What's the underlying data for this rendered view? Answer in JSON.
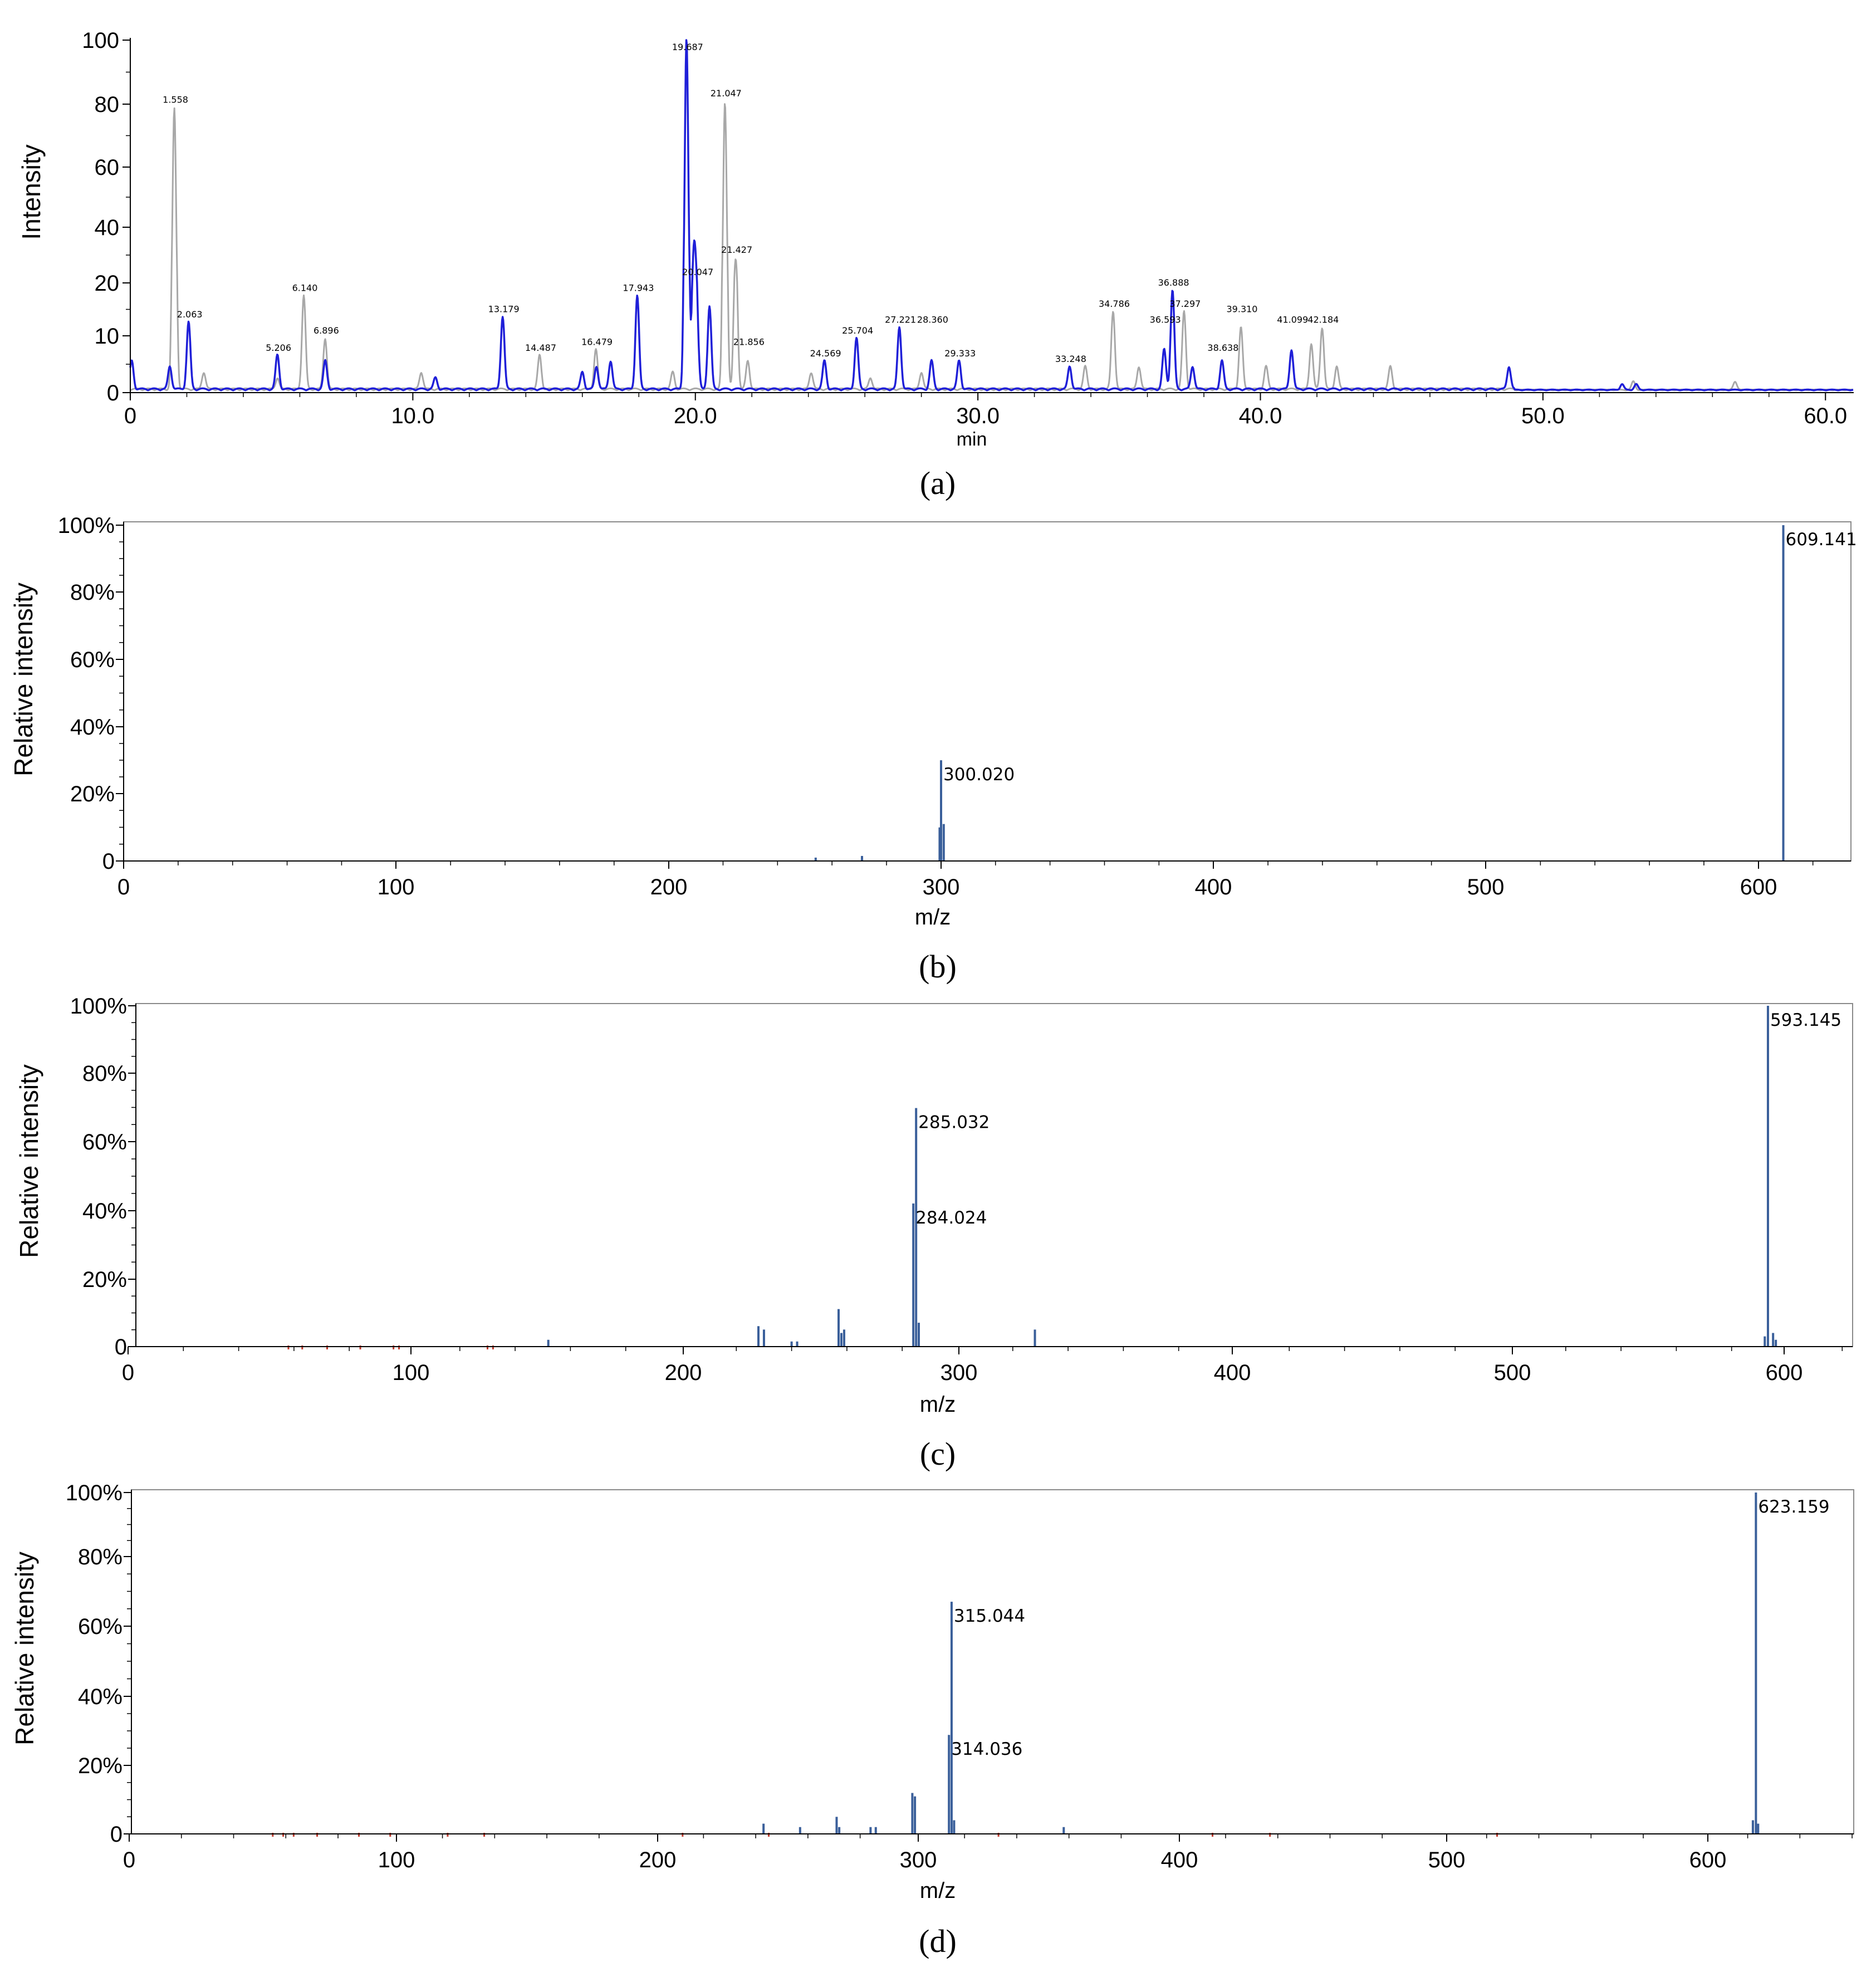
{
  "figure": {
    "panels": [
      "(a)",
      "(b)",
      "(c)",
      "(d)"
    ]
  },
  "colors": {
    "blue_trace": "#1f1fd8",
    "gray_trace": "#a8a8a8",
    "spectrum_bar": "#3a5f9a",
    "noise_red": "#c0392b",
    "axis": "#000000"
  },
  "chart_data": [
    {
      "type": "line",
      "panel": "a",
      "xlabel": "min",
      "ylabel": "Intensity",
      "xlim": [
        0,
        61
      ],
      "y_ticks": [
        "0",
        "10",
        "20",
        "40",
        "60",
        "80",
        "100"
      ],
      "x_ticks": [
        "0",
        "10.0",
        "20.0",
        "30.0",
        "40.0",
        "50.0",
        "60.0"
      ],
      "grid": false,
      "series": [
        {
          "color": "gray",
          "peaks": [
            [
              1.558,
              78
            ],
            [
              2.6,
              3
            ],
            [
              5.206,
              2
            ],
            [
              6.14,
              17
            ],
            [
              6.896,
              9
            ],
            [
              10.3,
              3
            ],
            [
              14.487,
              6
            ],
            [
              16.479,
              7
            ],
            [
              19.2,
              3
            ],
            [
              21.047,
              80
            ],
            [
              21.427,
              28
            ],
            [
              21.856,
              5
            ],
            [
              24.1,
              3
            ],
            [
              26.2,
              2
            ],
            [
              28.0,
              3
            ],
            [
              33.8,
              4
            ],
            [
              34.786,
              14
            ],
            [
              35.7,
              4
            ],
            [
              37.297,
              14
            ],
            [
              39.31,
              11
            ],
            [
              40.2,
              4
            ],
            [
              41.8,
              8
            ],
            [
              42.184,
              11
            ],
            [
              42.7,
              4
            ],
            [
              44.6,
              4
            ],
            [
              53.2,
              1.5
            ],
            [
              56.8,
              1.5
            ]
          ]
        },
        {
          "color": "blue",
          "peaks": [
            [
              0.05,
              5
            ],
            [
              1.4,
              4
            ],
            [
              2.063,
              12
            ],
            [
              5.206,
              6
            ],
            [
              6.9,
              5
            ],
            [
              10.8,
              2
            ],
            [
              13.179,
              13
            ],
            [
              16.0,
              3
            ],
            [
              16.5,
              4
            ],
            [
              17.0,
              5
            ],
            [
              17.943,
              17
            ],
            [
              19.687,
              100
            ],
            [
              19.95,
              30
            ],
            [
              20.047,
              13
            ],
            [
              20.5,
              15
            ],
            [
              24.569,
              5
            ],
            [
              25.704,
              9
            ],
            [
              27.221,
              11
            ],
            [
              28.36,
              5
            ],
            [
              29.333,
              5
            ],
            [
              33.248,
              4
            ],
            [
              36.593,
              7
            ],
            [
              36.888,
              18
            ],
            [
              37.6,
              4
            ],
            [
              38.638,
              5
            ],
            [
              41.099,
              7
            ],
            [
              48.8,
              4
            ],
            [
              52.8,
              1
            ],
            [
              53.3,
              1
            ]
          ]
        }
      ],
      "annotations": [
        {
          "x": 1.558,
          "y": 78,
          "text": "1.558"
        },
        {
          "x": 2.063,
          "y": 12,
          "text": "2.063"
        },
        {
          "x": 5.206,
          "y": 6,
          "text": "5.206"
        },
        {
          "x": 6.14,
          "y": 17,
          "text": "6.140"
        },
        {
          "x": 6.896,
          "y": 9,
          "text": "6.896"
        },
        {
          "x": 13.179,
          "y": 13,
          "text": "13.179"
        },
        {
          "x": 14.487,
          "y": 6,
          "text": "14.487"
        },
        {
          "x": 16.479,
          "y": 7,
          "text": "16.479"
        },
        {
          "x": 17.943,
          "y": 17,
          "text": "17.943"
        },
        {
          "x": 19.687,
          "y": 100,
          "text": "19.687"
        },
        {
          "x": 20.047,
          "y": 20,
          "text": "20.047"
        },
        {
          "x": 21.047,
          "y": 80,
          "text": "21.047"
        },
        {
          "x": 21.427,
          "y": 28,
          "text": "21.427"
        },
        {
          "x": 21.856,
          "y": 7,
          "text": "21.856"
        },
        {
          "x": 24.569,
          "y": 5,
          "text": "24.569"
        },
        {
          "x": 25.704,
          "y": 9,
          "text": "25.704"
        },
        {
          "x": 27.221,
          "y": 11,
          "text": "27.221"
        },
        {
          "x": 28.36,
          "y": 11,
          "text": "28.360"
        },
        {
          "x": 29.333,
          "y": 5,
          "text": "29.333"
        },
        {
          "x": 33.248,
          "y": 4,
          "text": "33.248"
        },
        {
          "x": 34.786,
          "y": 14,
          "text": "34.786"
        },
        {
          "x": 36.593,
          "y": 11,
          "text": "36.593"
        },
        {
          "x": 36.888,
          "y": 18,
          "text": "36.888"
        },
        {
          "x": 37.297,
          "y": 14,
          "text": "37.297"
        },
        {
          "x": 38.638,
          "y": 6,
          "text": "38.638"
        },
        {
          "x": 39.31,
          "y": 13,
          "text": "39.310"
        },
        {
          "x": 41.099,
          "y": 11,
          "text": "41.099"
        },
        {
          "x": 42.184,
          "y": 11,
          "text": "42.184"
        }
      ]
    },
    {
      "type": "bar",
      "panel": "b",
      "xlabel": "m/z",
      "ylabel": "Relative intensity",
      "xlim": [
        0,
        635
      ],
      "ylim": [
        0,
        100
      ],
      "y_ticks": [
        "0",
        "20%",
        "40%",
        "60%",
        "80%",
        "100%"
      ],
      "x_ticks": [
        "0",
        "100",
        "200",
        "300",
        "400",
        "500",
        "600"
      ],
      "grid": false,
      "peaks": [
        [
          254,
          1
        ],
        [
          271,
          1.5
        ],
        [
          299.5,
          10
        ],
        [
          300.02,
          30
        ],
        [
          301,
          11
        ],
        [
          609.141,
          100
        ]
      ],
      "labels": [
        {
          "x": 300.02,
          "y": 30,
          "text": "300.020"
        },
        {
          "x": 609.141,
          "y": 100,
          "text": "609.141"
        }
      ]
    },
    {
      "type": "bar",
      "panel": "c",
      "xlabel": "m/z",
      "ylabel": "Relative intensity",
      "xlim": [
        0,
        625
      ],
      "ylim": [
        0,
        100
      ],
      "y_ticks": [
        "0",
        "20%",
        "40%",
        "60%",
        "80%",
        "100%"
      ],
      "x_ticks": [
        "0",
        "100",
        "200",
        "300",
        "400",
        "500",
        "600"
      ],
      "grid": false,
      "peaks": [
        [
          152,
          2
        ],
        [
          228,
          6
        ],
        [
          230,
          5
        ],
        [
          240,
          1.5
        ],
        [
          242,
          1.5
        ],
        [
          257,
          11
        ],
        [
          258,
          4
        ],
        [
          259,
          5
        ],
        [
          284.024,
          42
        ],
        [
          285.032,
          70
        ],
        [
          286,
          7
        ],
        [
          328,
          5
        ],
        [
          592,
          3
        ],
        [
          593.145,
          100
        ],
        [
          595,
          4
        ],
        [
          596,
          2
        ]
      ],
      "labels": [
        {
          "x": 285.032,
          "y": 70,
          "text": "285.032"
        },
        {
          "x": 284.024,
          "y": 42,
          "text": "284.024"
        },
        {
          "x": 593.145,
          "y": 100,
          "text": "593.145"
        }
      ],
      "noise": [
        58,
        63,
        72,
        84,
        96,
        98,
        130,
        132
      ]
    },
    {
      "type": "bar",
      "panel": "d",
      "xlabel": "m/z",
      "ylabel": "Relative intensity",
      "xlim": [
        0,
        660
      ],
      "ylim": [
        0,
        100
      ],
      "y_ticks": [
        "0",
        "20%",
        "40%",
        "60%",
        "80%",
        "100%"
      ],
      "x_ticks": [
        "0",
        "100",
        "200",
        "300",
        "400",
        "500",
        "600"
      ],
      "grid": false,
      "peaks": [
        [
          243,
          3
        ],
        [
          257,
          2
        ],
        [
          271,
          5
        ],
        [
          272,
          2
        ],
        [
          284,
          2
        ],
        [
          286,
          2
        ],
        [
          300,
          12
        ],
        [
          301,
          11
        ],
        [
          314.036,
          29
        ],
        [
          315.044,
          68
        ],
        [
          316,
          4
        ],
        [
          358,
          2
        ],
        [
          622,
          4
        ],
        [
          623.159,
          100
        ],
        [
          624,
          3
        ]
      ],
      "labels": [
        {
          "x": 315.044,
          "y": 68,
          "text": "315.044"
        },
        {
          "x": 314.036,
          "y": 29,
          "text": "314.036"
        },
        {
          "x": 623.159,
          "y": 100,
          "text": "623.159"
        }
      ],
      "noise": [
        55,
        59,
        63,
        72,
        88,
        100,
        122,
        136,
        212,
        245,
        333,
        415,
        437,
        524
      ]
    }
  ]
}
